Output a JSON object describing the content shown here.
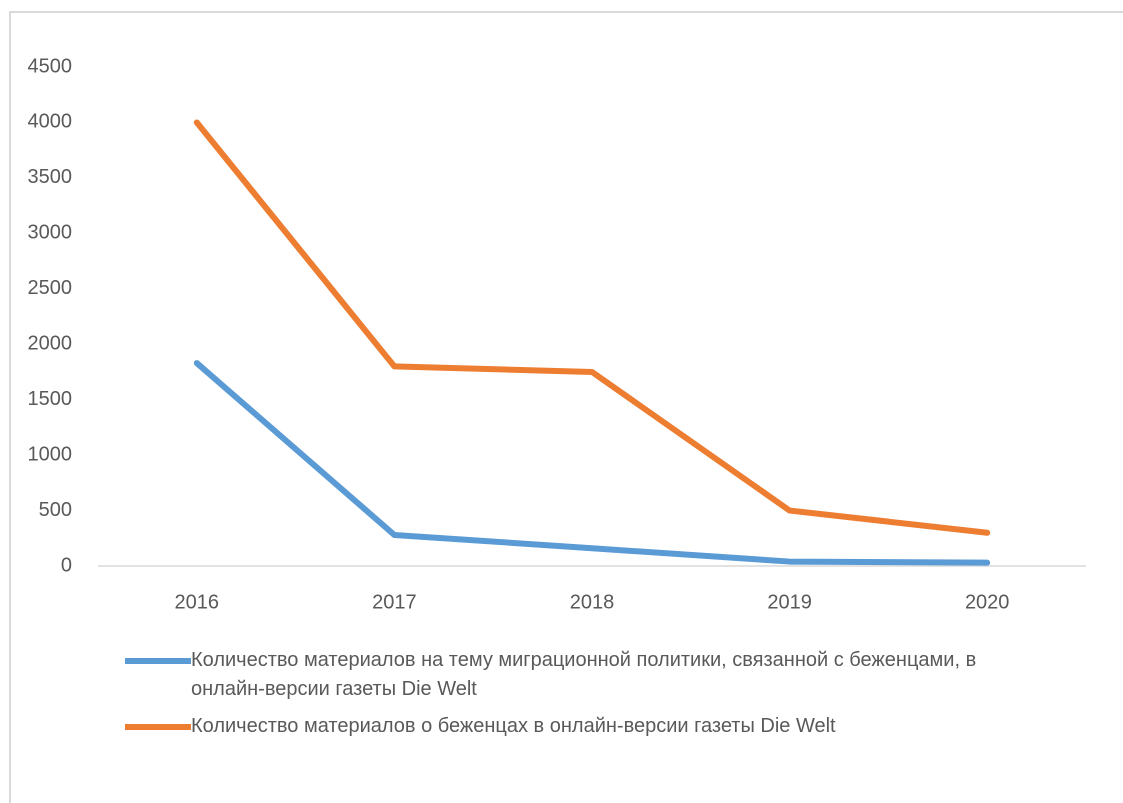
{
  "chart_data": {
    "type": "line",
    "categories": [
      "2016",
      "2017",
      "2018",
      "2019",
      "2020"
    ],
    "series": [
      {
        "name": "Количество материалов на тему миграционной политики, связанной с беженцами, в онлайн-версии газеты Die Welt",
        "color": "#5b9bd5",
        "values": [
          1830,
          280,
          160,
          40,
          30
        ]
      },
      {
        "name": "Количество материалов о беженцах в онлайн-версии газеты Die Welt",
        "color": "#ed7d31",
        "values": [
          4000,
          1800,
          1750,
          500,
          300
        ]
      }
    ],
    "ylim": [
      0,
      4500
    ],
    "yticks": [
      0,
      500,
      1000,
      1500,
      2000,
      2500,
      3000,
      3500,
      4000,
      4500
    ],
    "grid": false
  }
}
